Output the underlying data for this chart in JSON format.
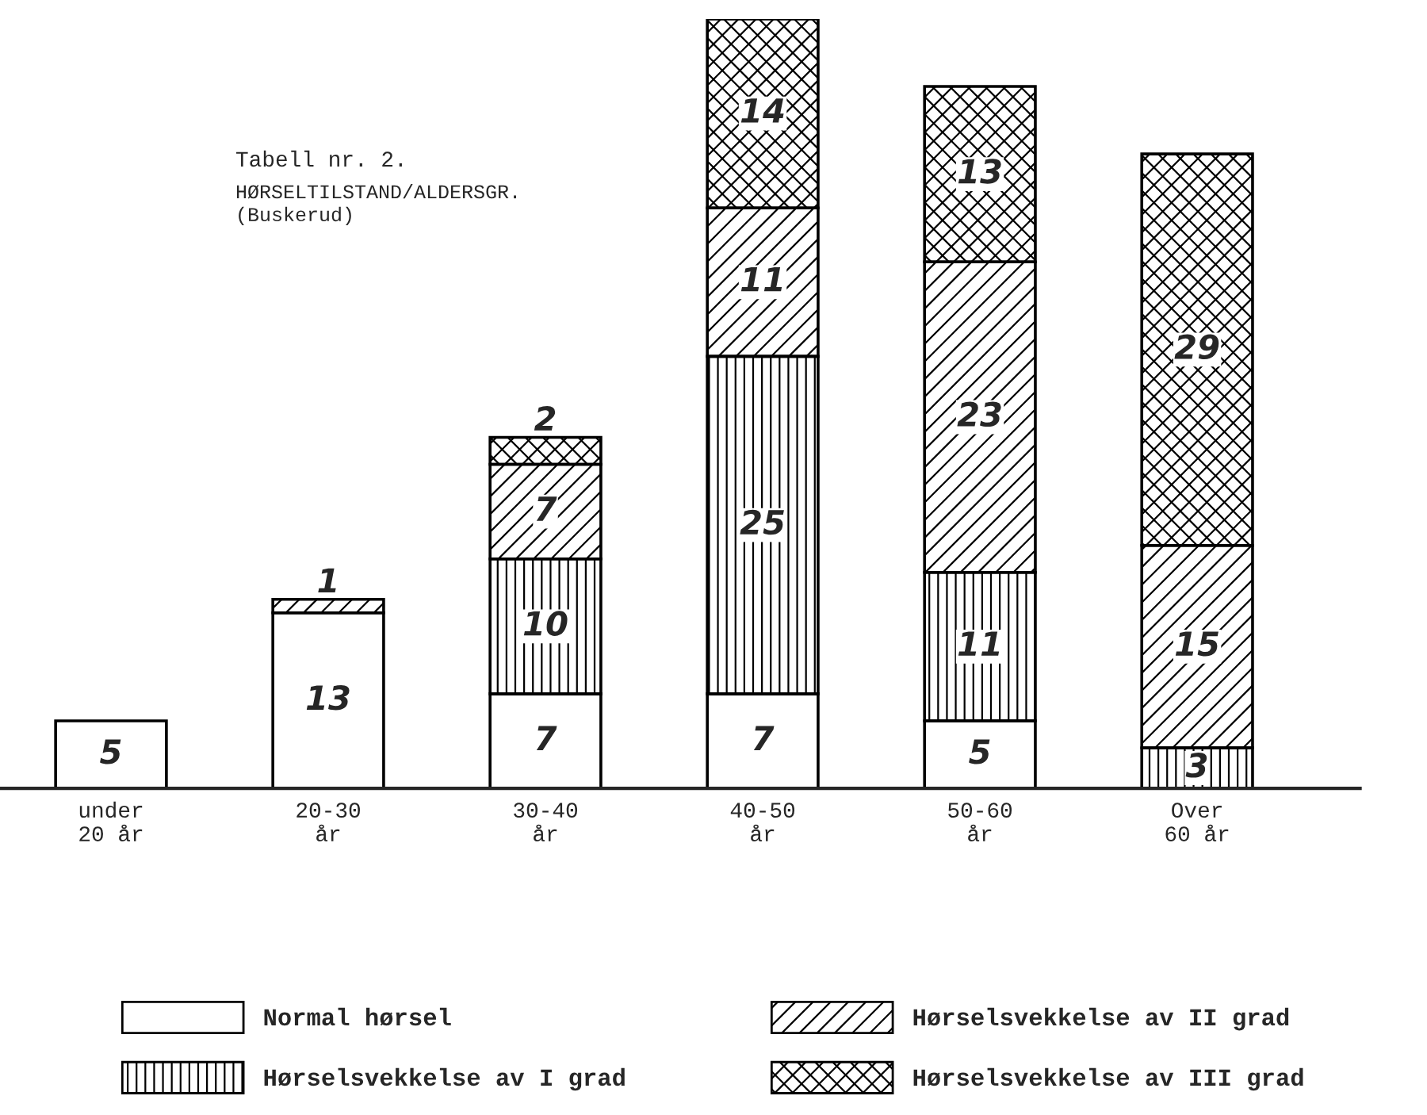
{
  "chart_data": {
    "type": "bar",
    "title": "Tabell nr. 2.",
    "subtitle": "HØRSELTILSTAND/ALDERSGR.\n(Buskerud)",
    "categories": [
      "under\n20 år",
      "20-30\når",
      "30-40\når",
      "40-50\når",
      "50-60\når",
      "Over\n60 år"
    ],
    "stacked": true,
    "data_labels": true,
    "legend": "bottom",
    "series": [
      {
        "name": "Normal hørsel",
        "color": "#ffffff",
        "values": [
          5,
          13,
          7,
          7,
          5,
          null
        ]
      },
      {
        "name": "Hørselsvekkelse av I grad",
        "color": "#000000",
        "values": [
          null,
          null,
          10,
          25,
          11,
          3
        ]
      },
      {
        "name": "Hørselsvekkelse av II grad",
        "color": "#000000",
        "values": [
          null,
          1,
          7,
          11,
          23,
          15
        ]
      },
      {
        "name": "Hørselsvekkelse av III grad",
        "color": "#000000",
        "values": [
          null,
          null,
          2,
          14,
          13,
          29
        ]
      }
    ]
  }
}
